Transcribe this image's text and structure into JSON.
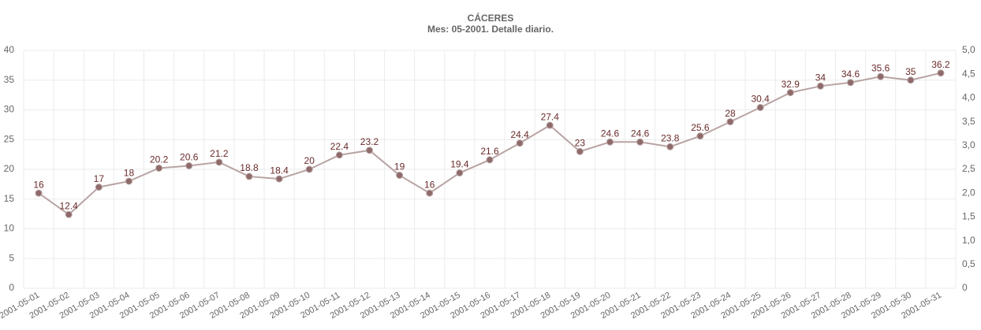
{
  "chart_data": {
    "type": "line",
    "title": "CÁCERES",
    "subtitle": "Mes: 05-2001. Detalle diario.",
    "categories": [
      "2001-05-01",
      "2001-05-02",
      "2001-05-03",
      "2001-05-04",
      "2001-05-05",
      "2001-05-06",
      "2001-05-07",
      "2001-05-08",
      "2001-05-09",
      "2001-05-10",
      "2001-05-11",
      "2001-05-12",
      "2001-05-13",
      "2001-05-14",
      "2001-05-15",
      "2001-05-16",
      "2001-05-17",
      "2001-05-18",
      "2001-05-19",
      "2001-05-20",
      "2001-05-21",
      "2001-05-22",
      "2001-05-23",
      "2001-05-24",
      "2001-05-25",
      "2001-05-26",
      "2001-05-27",
      "2001-05-28",
      "2001-05-29",
      "2001-05-30",
      "2001-05-31"
    ],
    "values": [
      16,
      12.4,
      17,
      18,
      20.2,
      20.6,
      21.2,
      18.8,
      18.4,
      20,
      22.4,
      23.2,
      19,
      16,
      19.4,
      21.6,
      24.4,
      27.4,
      23,
      24.6,
      24.6,
      23.8,
      25.6,
      28,
      30.4,
      32.9,
      34,
      34.6,
      35.6,
      35,
      36.2
    ],
    "color": "#b9a3a3",
    "marker_color": "#8e6a6a",
    "label_color": "#6a2a2a",
    "ylim": [
      0,
      40
    ],
    "yticks": [
      0,
      5,
      10,
      15,
      20,
      25,
      30,
      35,
      40
    ],
    "y2lim": [
      0,
      5
    ],
    "y2ticks": [
      0,
      {
        "value": 0.5,
        "label": "0,5"
      },
      {
        "value": 1,
        "label": "1,0"
      },
      {
        "value": 1.5,
        "label": "1,5"
      },
      {
        "value": 2,
        "label": "2,0"
      },
      {
        "value": 2.5,
        "label": "2,5"
      },
      {
        "value": 3,
        "label": "3,0"
      },
      {
        "value": 3.5,
        "label": "3,5"
      },
      {
        "value": 4,
        "label": "4,0"
      },
      {
        "value": 4.5,
        "label": "4,5"
      },
      {
        "value": 5,
        "label": "5,0"
      }
    ],
    "grid": true
  }
}
